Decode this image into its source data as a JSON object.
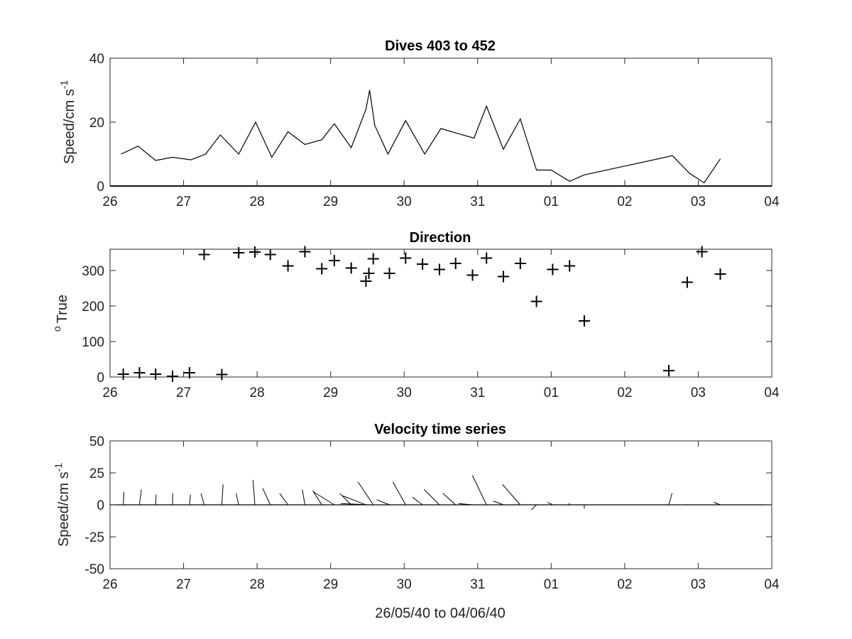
{
  "chart_data": [
    {
      "type": "line",
      "title": "Dives 403 to 452",
      "ylabel_main": "Speed/cm s",
      "ylabel_sup": "-1",
      "xlabel": "",
      "x_tick_labels": [
        "26",
        "27",
        "28",
        "29",
        "30",
        "31",
        "01",
        "02",
        "03",
        "04"
      ],
      "xlim": [
        0,
        9
      ],
      "ylim": [
        0,
        40
      ],
      "y_ticks": [
        0,
        20,
        40
      ],
      "color": "#000000",
      "x": [
        0.15,
        0.38,
        0.62,
        0.85,
        1.1,
        1.3,
        1.5,
        1.75,
        1.98,
        2.2,
        2.42,
        2.65,
        2.88,
        3.05,
        3.28,
        3.48,
        3.53,
        3.6,
        3.78,
        4.02,
        4.28,
        4.5,
        4.72,
        4.95,
        5.12,
        5.35,
        5.58,
        5.8,
        6.0,
        6.25,
        6.45,
        7.05,
        7.65,
        7.88,
        8.08,
        8.3
      ],
      "y": [
        10,
        12.5,
        8,
        9,
        8.2,
        10,
        16,
        10,
        20,
        9,
        17,
        13,
        14.5,
        19.5,
        12,
        24,
        30,
        19,
        10,
        20.5,
        10,
        18,
        16.5,
        15,
        25,
        11.5,
        21,
        5,
        5,
        1.5,
        3.5,
        6.5,
        9.5,
        4,
        1,
        8.5
      ]
    },
    {
      "type": "scatter",
      "title": "Direction",
      "ylabel_main": "True",
      "ylabel_sup": "o",
      "xlabel": "",
      "x_tick_labels": [
        "26",
        "27",
        "28",
        "29",
        "30",
        "31",
        "01",
        "02",
        "03",
        "04"
      ],
      "xlim": [
        0,
        9
      ],
      "ylim": [
        0,
        360
      ],
      "y_ticks": [
        0,
        100,
        200,
        300
      ],
      "marker": "+",
      "color": "#000000",
      "x": [
        0.18,
        0.4,
        0.62,
        0.85,
        1.08,
        1.28,
        1.52,
        1.75,
        1.97,
        2.18,
        2.42,
        2.65,
        2.88,
        3.05,
        3.28,
        3.48,
        3.52,
        3.58,
        3.8,
        4.02,
        4.25,
        4.48,
        4.7,
        4.93,
        5.12,
        5.35,
        5.58,
        5.8,
        6.02,
        6.25,
        6.45,
        7.6,
        7.85,
        8.05,
        8.3
      ],
      "y": [
        8,
        12,
        8,
        2,
        12,
        345,
        7,
        350,
        352,
        345,
        313,
        353,
        305,
        328,
        307,
        270,
        292,
        333,
        292,
        335,
        318,
        303,
        320,
        287,
        335,
        283,
        320,
        213,
        303,
        313,
        158,
        18,
        267,
        353,
        290
      ]
    },
    {
      "type": "quiver",
      "title": "Velocity time series",
      "ylabel_main": "Speed/cm s",
      "ylabel_sup": "-1",
      "xlabel": "26/05/40 to 04/06/40",
      "x_tick_labels": [
        "26",
        "27",
        "28",
        "29",
        "30",
        "31",
        "01",
        "02",
        "03",
        "04"
      ],
      "xlim": [
        0,
        9
      ],
      "ylim": [
        -50,
        50
      ],
      "y_ticks": [
        -50,
        -25,
        0,
        25,
        50
      ],
      "color": "#000000",
      "vectors": [
        {
          "x": 0.18,
          "u": 0.5,
          "v": 10
        },
        {
          "x": 0.4,
          "u": 1.5,
          "v": 12
        },
        {
          "x": 0.62,
          "u": 0.4,
          "v": 8
        },
        {
          "x": 0.85,
          "u": 0.1,
          "v": 9
        },
        {
          "x": 1.08,
          "u": 0.8,
          "v": 8
        },
        {
          "x": 1.28,
          "u": -2.5,
          "v": 9
        },
        {
          "x": 1.52,
          "u": 1.0,
          "v": 16
        },
        {
          "x": 1.75,
          "u": -2,
          "v": 9
        },
        {
          "x": 1.97,
          "u": -1.5,
          "v": 19.5
        },
        {
          "x": 2.18,
          "u": -6,
          "v": 13
        },
        {
          "x": 2.42,
          "u": -6.5,
          "v": 9
        },
        {
          "x": 2.65,
          "u": -2,
          "v": 12
        },
        {
          "x": 2.88,
          "u": -7,
          "v": 11
        },
        {
          "x": 3.05,
          "u": -16,
          "v": 10
        },
        {
          "x": 3.28,
          "u": -9,
          "v": 9
        },
        {
          "x": 3.48,
          "u": -18,
          "v": 7
        },
        {
          "x": 3.52,
          "u": -22,
          "v": 1
        },
        {
          "x": 3.58,
          "u": -12,
          "v": 18
        },
        {
          "x": 3.8,
          "u": -10,
          "v": 4
        },
        {
          "x": 4.02,
          "u": -10,
          "v": 18
        },
        {
          "x": 4.25,
          "u": -8,
          "v": 6
        },
        {
          "x": 4.48,
          "u": -12,
          "v": 12
        },
        {
          "x": 4.7,
          "u": -10,
          "v": 9
        },
        {
          "x": 4.93,
          "u": -11,
          "v": 1
        },
        {
          "x": 5.12,
          "u": -11,
          "v": 23
        },
        {
          "x": 5.35,
          "u": -8,
          "v": 3
        },
        {
          "x": 5.58,
          "u": -14,
          "v": 16
        },
        {
          "x": 5.8,
          "u": -4,
          "v": -4
        },
        {
          "x": 6.02,
          "u": -4,
          "v": 2
        },
        {
          "x": 6.25,
          "u": -0.5,
          "v": 1.2
        },
        {
          "x": 6.45,
          "u": 0,
          "v": -3
        },
        {
          "x": 7.6,
          "u": 2.5,
          "v": 9
        },
        {
          "x": 7.85,
          "u": 0,
          "v": 0.5
        },
        {
          "x": 8.05,
          "u": 0,
          "v": 0
        },
        {
          "x": 8.3,
          "u": -5,
          "v": 2
        }
      ]
    }
  ]
}
